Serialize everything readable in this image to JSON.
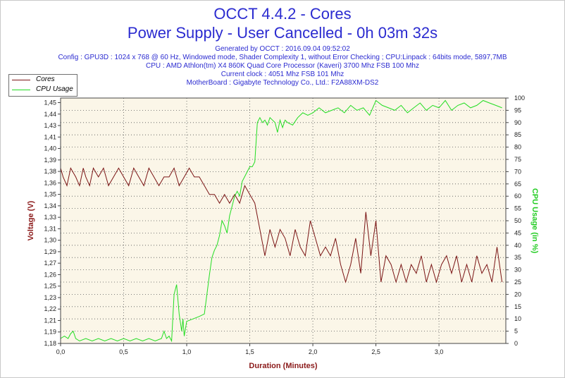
{
  "header": {
    "title": "OCCT 4.4.2 - Cores",
    "subtitle": "Power Supply - User Cancelled - 0h 03m 32s",
    "info_lines": [
      "Generated by OCCT : 2016.09.04 09:52:02",
      "Config : GPU3D : 1024 x 768 @ 60 Hz, Windowed mode, Shader Complexity 1, without Error Checking ; CPU:Linpack : 64bits mode, 5897,7MB",
      "CPU : AMD Athlon(tm) X4 860K Quad Core Processor (Kaveri) 3700 Mhz FSB 100 Mhz",
      "Current clock : 4051 Mhz FSB 101 Mhz",
      "MotherBoard : Gigabyte Technology Co., Ltd.: F2A88XM-DS2"
    ]
  },
  "colors": {
    "title": "#2b2bd0",
    "cores": "#7a1414",
    "cpu": "#22dd22",
    "axis_label_left": "#8b1a1a",
    "axis_label_right": "#22cc22",
    "plot_bg": "#fbf6e8"
  },
  "chart_data": {
    "type": "line",
    "xlabel": "Duration (Minutes)",
    "ylabel_left": "Voltage (V)",
    "ylabel_right": "CPU Usage (in %)",
    "xlim": [
      0,
      3.53
    ],
    "ylim_left": [
      1.18,
      1.46
    ],
    "ylim_right": [
      0,
      100
    ],
    "x_ticks": [
      "0,0",
      "0,5",
      "1,0",
      "1,5",
      "2,0",
      "2,5",
      "3,0"
    ],
    "x_tick_values": [
      0,
      0.5,
      1.0,
      1.5,
      2.0,
      2.5,
      3.0
    ],
    "y_left_ticks": [
      "1,18",
      "1,19",
      "1,21",
      "1,22",
      "1,23",
      "1,25",
      "1,26",
      "1,27",
      "1,29",
      "1,30",
      "1,31",
      "1,33",
      "1,34",
      "1,35",
      "1,36",
      "1,38",
      "1,39",
      "1,40",
      "1,41",
      "1,43",
      "1,44",
      "1,45"
    ],
    "y_left_tick_values": [
      1.18,
      1.19,
      1.21,
      1.22,
      1.23,
      1.25,
      1.26,
      1.27,
      1.29,
      1.3,
      1.31,
      1.33,
      1.34,
      1.35,
      1.36,
      1.38,
      1.39,
      1.4,
      1.41,
      1.43,
      1.44,
      1.45
    ],
    "y_right_ticks": [
      "0",
      "5",
      "10",
      "15",
      "20",
      "25",
      "30",
      "35",
      "40",
      "45",
      "50",
      "55",
      "60",
      "65",
      "70",
      "75",
      "80",
      "85",
      "90",
      "95",
      "100"
    ],
    "y_right_tick_values": [
      0,
      5,
      10,
      15,
      20,
      25,
      30,
      35,
      40,
      45,
      50,
      55,
      60,
      65,
      70,
      75,
      80,
      85,
      90,
      95,
      100
    ],
    "grid": true,
    "legend_position": "top-left",
    "series": [
      {
        "name": "Cores",
        "axis": "left",
        "x": [
          0.0,
          0.02,
          0.05,
          0.08,
          0.12,
          0.15,
          0.18,
          0.2,
          0.23,
          0.26,
          0.3,
          0.34,
          0.38,
          0.42,
          0.46,
          0.5,
          0.54,
          0.58,
          0.62,
          0.66,
          0.7,
          0.74,
          0.78,
          0.82,
          0.86,
          0.9,
          0.94,
          0.98,
          1.02,
          1.06,
          1.1,
          1.14,
          1.18,
          1.22,
          1.26,
          1.3,
          1.34,
          1.38,
          1.42,
          1.46,
          1.5,
          1.54,
          1.58,
          1.62,
          1.66,
          1.7,
          1.74,
          1.78,
          1.82,
          1.86,
          1.9,
          1.94,
          1.98,
          2.02,
          2.06,
          2.1,
          2.14,
          2.18,
          2.22,
          2.26,
          2.3,
          2.34,
          2.38,
          2.42,
          2.46,
          2.5,
          2.54,
          2.58,
          2.62,
          2.66,
          2.7,
          2.74,
          2.78,
          2.82,
          2.86,
          2.9,
          2.94,
          2.98,
          3.02,
          3.06,
          3.1,
          3.14,
          3.18,
          3.22,
          3.26,
          3.3,
          3.34,
          3.38,
          3.42,
          3.46,
          3.5
        ],
        "y": [
          1.38,
          1.37,
          1.36,
          1.38,
          1.37,
          1.36,
          1.38,
          1.37,
          1.36,
          1.38,
          1.37,
          1.38,
          1.36,
          1.37,
          1.38,
          1.37,
          1.36,
          1.38,
          1.37,
          1.36,
          1.38,
          1.37,
          1.36,
          1.37,
          1.37,
          1.38,
          1.36,
          1.37,
          1.38,
          1.37,
          1.37,
          1.36,
          1.35,
          1.35,
          1.34,
          1.35,
          1.34,
          1.35,
          1.34,
          1.36,
          1.35,
          1.34,
          1.31,
          1.28,
          1.31,
          1.29,
          1.31,
          1.3,
          1.28,
          1.31,
          1.29,
          1.28,
          1.32,
          1.3,
          1.28,
          1.29,
          1.28,
          1.3,
          1.27,
          1.25,
          1.27,
          1.3,
          1.26,
          1.33,
          1.28,
          1.32,
          1.25,
          1.28,
          1.27,
          1.25,
          1.27,
          1.25,
          1.27,
          1.26,
          1.28,
          1.25,
          1.27,
          1.25,
          1.27,
          1.28,
          1.26,
          1.28,
          1.25,
          1.27,
          1.25,
          1.28,
          1.26,
          1.27,
          1.25,
          1.29,
          1.25
        ]
      },
      {
        "name": "CPU Usage",
        "axis": "right",
        "x": [
          0.0,
          0.03,
          0.06,
          0.08,
          0.1,
          0.12,
          0.15,
          0.2,
          0.25,
          0.3,
          0.35,
          0.4,
          0.45,
          0.5,
          0.55,
          0.6,
          0.65,
          0.7,
          0.75,
          0.8,
          0.82,
          0.84,
          0.86,
          0.88,
          0.9,
          0.92,
          0.94,
          0.96,
          0.97,
          0.98,
          1.0,
          1.05,
          1.1,
          1.14,
          1.16,
          1.18,
          1.2,
          1.22,
          1.24,
          1.26,
          1.28,
          1.3,
          1.32,
          1.34,
          1.36,
          1.38,
          1.4,
          1.42,
          1.44,
          1.46,
          1.48,
          1.5,
          1.52,
          1.54,
          1.56,
          1.58,
          1.6,
          1.62,
          1.64,
          1.66,
          1.68,
          1.7,
          1.72,
          1.74,
          1.76,
          1.78,
          1.8,
          1.84,
          1.88,
          1.92,
          1.96,
          2.0,
          2.05,
          2.1,
          2.15,
          2.2,
          2.25,
          2.3,
          2.35,
          2.4,
          2.45,
          2.5,
          2.55,
          2.6,
          2.65,
          2.7,
          2.75,
          2.8,
          2.85,
          2.9,
          2.95,
          3.0,
          3.05,
          3.1,
          3.15,
          3.2,
          3.25,
          3.3,
          3.35,
          3.4,
          3.45,
          3.5
        ],
        "y": [
          2,
          3,
          2,
          4,
          5,
          2,
          1,
          2,
          1,
          2,
          1,
          2,
          1,
          2,
          1,
          2,
          1,
          2,
          1,
          2,
          5,
          2,
          3,
          1,
          20,
          24,
          12,
          5,
          10,
          3,
          9,
          10,
          11,
          12,
          20,
          28,
          35,
          38,
          40,
          44,
          50,
          48,
          45,
          52,
          56,
          60,
          62,
          60,
          66,
          68,
          70,
          72,
          72,
          74,
          90,
          92,
          90,
          91,
          89,
          92,
          91,
          90,
          86,
          91,
          88,
          91,
          90,
          89,
          92,
          94,
          93,
          94,
          96,
          94,
          95,
          96,
          94,
          97,
          95,
          96,
          93,
          99,
          97,
          96,
          95,
          97,
          94,
          96,
          98,
          95,
          97,
          96,
          99,
          95,
          97,
          98,
          96,
          97,
          99,
          98,
          97,
          96
        ]
      }
    ]
  }
}
